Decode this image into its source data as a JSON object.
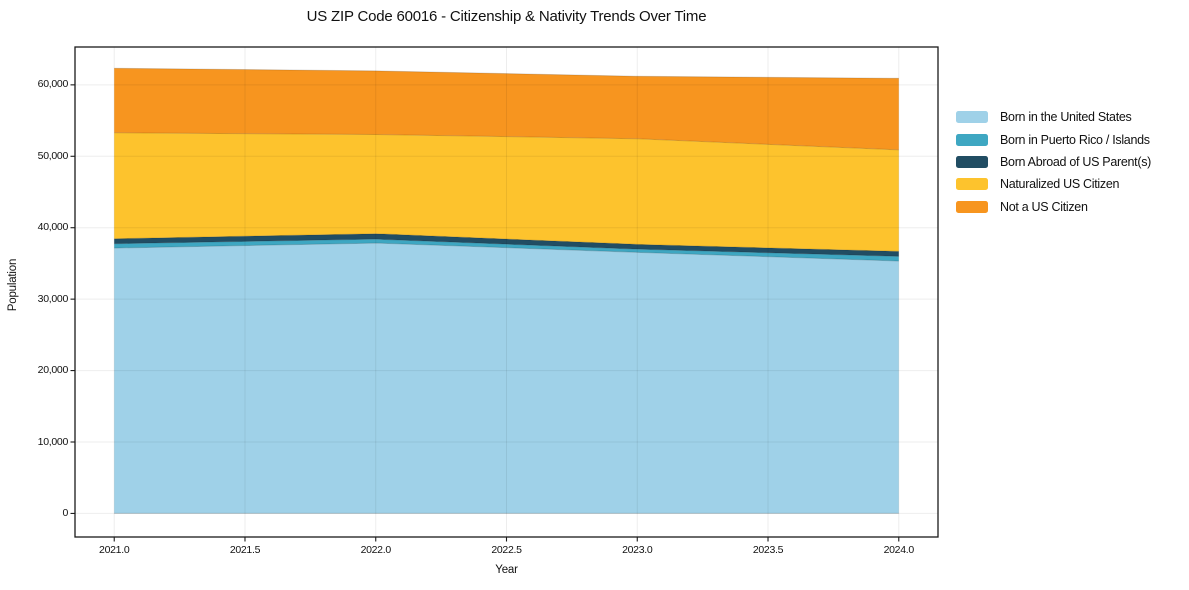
{
  "chart_data": {
    "type": "area",
    "stacked": true,
    "title": "US ZIP Code 60016 - Citizenship & Nativity Trends Over Time",
    "xlabel": "Year",
    "ylabel": "Population",
    "x": [
      2021,
      2022,
      2023,
      2024
    ],
    "series": [
      {
        "name": "Born in the United States",
        "color": "#9FD1E8",
        "values": [
          37150,
          37850,
          36550,
          35330
        ]
      },
      {
        "name": "Born in Puerto Rico / Islands",
        "color": "#3EA7C2",
        "values": [
          610,
          550,
          450,
          660
        ]
      },
      {
        "name": "Born Abroad of US Parent(s)",
        "color": "#214D63",
        "values": [
          700,
          760,
          670,
          700
        ]
      },
      {
        "name": "Naturalized US Citizen",
        "color": "#FDC32D",
        "values": [
          14830,
          13890,
          14780,
          14210
        ]
      },
      {
        "name": "Not a US Citizen",
        "color": "#F7951F",
        "values": [
          9030,
          8910,
          8750,
          10020
        ]
      }
    ],
    "xlim": [
      2020.85,
      2024.15
    ],
    "ylim": [
      -3300,
      65300
    ],
    "x_ticks": [
      {
        "v": 2021.0,
        "label": "2021.0"
      },
      {
        "v": 2021.5,
        "label": "2021.5"
      },
      {
        "v": 2022.0,
        "label": "2022.0"
      },
      {
        "v": 2022.5,
        "label": "2022.5"
      },
      {
        "v": 2023.0,
        "label": "2023.0"
      },
      {
        "v": 2023.5,
        "label": "2023.5"
      },
      {
        "v": 2024.0,
        "label": "2024.0"
      }
    ],
    "y_ticks": [
      {
        "v": 0,
        "label": "0"
      },
      {
        "v": 10000,
        "label": "10,000"
      },
      {
        "v": 20000,
        "label": "20,000"
      },
      {
        "v": 30000,
        "label": "30,000"
      },
      {
        "v": 40000,
        "label": "40,000"
      },
      {
        "v": 50000,
        "label": "50,000"
      },
      {
        "v": 60000,
        "label": "60,000"
      }
    ],
    "grid": true,
    "legend_position": "right-outside"
  },
  "style_colors": {
    "spine": "#1a1a1a",
    "grid_overlay": "rgba(0,0,0,0.07)",
    "boundary_line": "rgba(0,0,0,0.15)",
    "background": "#ffffff"
  }
}
